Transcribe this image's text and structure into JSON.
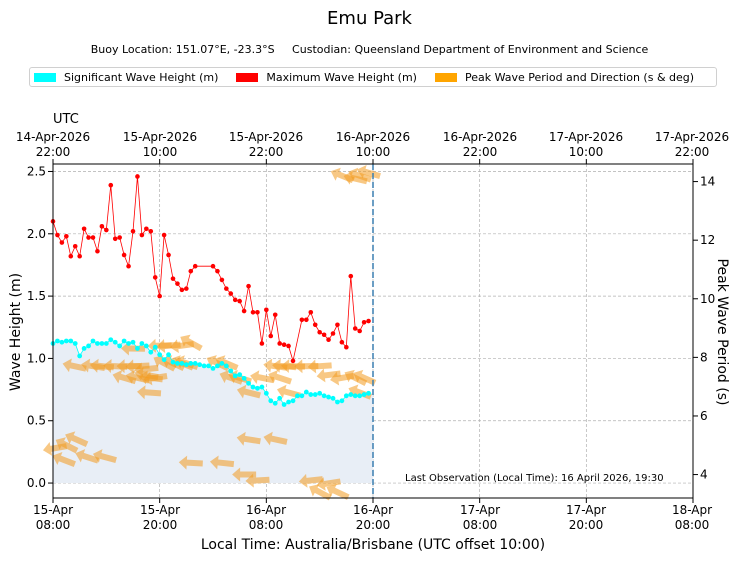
{
  "title": "Emu Park",
  "subtitle": "Buoy Location: 151.07°E, -23.3°S     Custodian: Queensland Department of Environment and Science",
  "legend": [
    {
      "label": "Significant Wave Height (m)",
      "color": "#00ffff"
    },
    {
      "label": "Maximum Wave Height (m)",
      "color": "#ff0000"
    },
    {
      "label": "Peak Wave Period and Direction (s & deg)",
      "color": "#ffa500"
    }
  ],
  "utc_label": "UTC",
  "top_ticks": [
    {
      "date": "14-Apr-2026",
      "time": "22:00"
    },
    {
      "date": "15-Apr-2026",
      "time": "10:00"
    },
    {
      "date": "15-Apr-2026",
      "time": "22:00"
    },
    {
      "date": "16-Apr-2026",
      "time": "10:00"
    },
    {
      "date": "16-Apr-2026",
      "time": "22:00"
    },
    {
      "date": "17-Apr-2026",
      "time": "10:00"
    },
    {
      "date": "17-Apr-2026",
      "time": "22:00"
    }
  ],
  "bottom_ticks": [
    {
      "date": "15-Apr",
      "time": "08:00"
    },
    {
      "date": "15-Apr",
      "time": "20:00"
    },
    {
      "date": "16-Apr",
      "time": "08:00"
    },
    {
      "date": "16-Apr",
      "time": "20:00"
    },
    {
      "date": "17-Apr",
      "time": "08:00"
    },
    {
      "date": "17-Apr",
      "time": "20:00"
    },
    {
      "date": "18-Apr",
      "time": "08:00"
    }
  ],
  "xlabel": "Local Time: Australia/Brisbane (UTC offset 10:00)",
  "ylabel_left": "Wave Height (m)",
  "ylabel_right": "Peak Wave Period (s)",
  "last_observation": "Last Observation (Local Time): 16 April 2026, 19:30",
  "chart_data": {
    "type": "line",
    "title": "Emu Park",
    "x_unit": "hours since 15-Apr 08:00 local",
    "xlim": [
      0,
      72
    ],
    "ylim": [
      -0.12,
      2.56
    ],
    "y2lim": [
      3.2,
      14.6
    ],
    "yticks": [
      0.0,
      0.5,
      1.0,
      1.5,
      2.0,
      2.5
    ],
    "y2ticks": [
      4,
      6,
      8,
      10,
      12,
      14
    ],
    "y_tick_labels": [
      "0.0",
      "0.5",
      "1.0",
      "1.5",
      "2.0",
      "2.5"
    ],
    "y2_tick_labels": [
      "4",
      "6",
      "8",
      "10",
      "12",
      "14"
    ],
    "last_observation_x": 36,
    "series": [
      {
        "name": "Significant Wave Height (m)",
        "color": "#00ffff",
        "x": [
          0,
          0.5,
          1,
          1.5,
          2,
          2.5,
          3,
          3.5,
          4,
          4.5,
          5,
          5.5,
          6,
          6.5,
          7,
          7.5,
          8,
          8.5,
          9,
          9.5,
          10,
          10.5,
          11,
          11.5,
          12,
          12.5,
          13,
          13.5,
          14,
          14.5,
          15,
          15.5,
          16,
          16.5,
          17,
          17.5,
          18,
          18.5,
          19,
          19.5,
          20,
          20.5,
          21,
          21.5,
          22,
          22.5,
          23,
          23.5,
          24,
          24.5,
          25,
          25.5,
          26,
          26.5,
          27,
          27.5,
          28,
          28.5,
          29,
          29.5,
          30,
          30.5,
          31,
          31.5,
          32,
          32.5,
          33,
          33.5,
          34,
          34.5,
          35,
          35.5
        ],
        "values": [
          1.12,
          1.14,
          1.13,
          1.14,
          1.14,
          1.12,
          1.02,
          1.08,
          1.1,
          1.14,
          1.12,
          1.12,
          1.12,
          1.15,
          1.13,
          1.1,
          1.14,
          1.12,
          1.13,
          1.08,
          1.12,
          1.1,
          1.05,
          1.09,
          1.03,
          0.99,
          1.03,
          0.97,
          0.96,
          0.96,
          0.95,
          0.96,
          0.96,
          0.95,
          0.94,
          0.94,
          0.92,
          0.94,
          0.96,
          0.94,
          0.9,
          0.86,
          0.87,
          0.84,
          0.8,
          0.77,
          0.76,
          0.77,
          0.72,
          0.66,
          0.64,
          0.68,
          0.63,
          0.65,
          0.66,
          0.7,
          0.7,
          0.73,
          0.71,
          0.71,
          0.72,
          0.7,
          0.69,
          0.68,
          0.65,
          0.66,
          0.7,
          0.71,
          0.7,
          0.7,
          0.71,
          0.72
        ]
      },
      {
        "name": "Maximum Wave Height (m)",
        "color": "#ff0000",
        "x": [
          0,
          0.5,
          1,
          1.5,
          2,
          2.5,
          3,
          3.5,
          4,
          4.5,
          5,
          5.5,
          6,
          6.5,
          7,
          7.5,
          8,
          8.5,
          9,
          9.5,
          10,
          10.5,
          11,
          11.5,
          12,
          12.5,
          13,
          13.5,
          14,
          14.5,
          15,
          15.5,
          16,
          18,
          18.5,
          19,
          19.5,
          20,
          20.5,
          21,
          21.5,
          22,
          22.5,
          23,
          23.5,
          24,
          24.5,
          25,
          25.5,
          26,
          26.5,
          27,
          28,
          28.5,
          29,
          29.5,
          30,
          30.5,
          31,
          31.5,
          32,
          32.5,
          33,
          33.5,
          34,
          34.5,
          35,
          35.5
        ],
        "values": [
          2.1,
          1.99,
          1.93,
          1.98,
          1.82,
          1.9,
          1.82,
          2.04,
          1.97,
          1.97,
          1.86,
          2.06,
          2.03,
          2.39,
          1.96,
          1.97,
          1.83,
          1.74,
          2.02,
          2.46,
          1.99,
          2.04,
          2.02,
          1.65,
          1.5,
          1.99,
          1.83,
          1.64,
          1.6,
          1.55,
          1.56,
          1.7,
          1.74,
          1.74,
          1.7,
          1.63,
          1.56,
          1.52,
          1.47,
          1.46,
          1.38,
          1.58,
          1.37,
          1.37,
          1.12,
          1.39,
          1.18,
          1.35,
          1.12,
          1.11,
          1.1,
          0.98,
          1.31,
          1.31,
          1.37,
          1.27,
          1.21,
          1.19,
          1.15,
          1.2,
          1.27,
          1.13,
          1.09,
          1.66,
          1.24,
          1.22,
          1.29,
          1.3
        ]
      },
      {
        "name": "Peak Wave Period and Direction (s & deg)",
        "color": "#ffa500",
        "marker": "direction-arrow",
        "period_points": [
          {
            "x": 0.2,
            "period": 4.9
          },
          {
            "x": 1.5,
            "period": 5.0
          },
          {
            "x": 2.6,
            "period": 5.2
          },
          {
            "x": 1.2,
            "period": 4.5
          },
          {
            "x": 3.8,
            "period": 4.6
          },
          {
            "x": 5.8,
            "period": 4.6
          },
          {
            "x": 2.4,
            "period": 7.7
          },
          {
            "x": 4.5,
            "period": 7.7
          },
          {
            "x": 5.5,
            "period": 7.7
          },
          {
            "x": 7.0,
            "period": 7.7
          },
          {
            "x": 8.5,
            "period": 7.7
          },
          {
            "x": 9.5,
            "period": 7.7
          },
          {
            "x": 10.5,
            "period": 7.6
          },
          {
            "x": 11.5,
            "period": 7.3
          },
          {
            "x": 12.5,
            "period": 7.8
          },
          {
            "x": 13.5,
            "period": 7.8
          },
          {
            "x": 14.5,
            "period": 7.8
          },
          {
            "x": 15.0,
            "period": 7.8
          },
          {
            "x": 8.0,
            "period": 7.3
          },
          {
            "x": 9.5,
            "period": 7.3
          },
          {
            "x": 10.5,
            "period": 7.4
          },
          {
            "x": 11.0,
            "period": 7.3
          },
          {
            "x": 10.8,
            "period": 6.8
          },
          {
            "x": 9.0,
            "period": 8.3
          },
          {
            "x": 12.0,
            "period": 8.4
          },
          {
            "x": 13.0,
            "period": 8.4
          },
          {
            "x": 14.5,
            "period": 8.4
          },
          {
            "x": 15.5,
            "period": 8.5
          },
          {
            "x": 18.5,
            "period": 7.8
          },
          {
            "x": 19.5,
            "period": 7.8
          },
          {
            "x": 20.0,
            "period": 7.3
          },
          {
            "x": 21.0,
            "period": 7.3
          },
          {
            "x": 22.0,
            "period": 6.8
          },
          {
            "x": 23.5,
            "period": 7.3
          },
          {
            "x": 25.0,
            "period": 7.7
          },
          {
            "x": 26.0,
            "period": 7.7
          },
          {
            "x": 27.0,
            "period": 7.7
          },
          {
            "x": 28.5,
            "period": 7.7
          },
          {
            "x": 30.0,
            "period": 7.7
          },
          {
            "x": 31.0,
            "period": 7.4
          },
          {
            "x": 32.5,
            "period": 7.3
          },
          {
            "x": 34.0,
            "period": 7.3
          },
          {
            "x": 35.0,
            "period": 7.3
          },
          {
            "x": 34.5,
            "period": 6.8
          },
          {
            "x": 25.5,
            "period": 7.3
          },
          {
            "x": 26.5,
            "period": 6.8
          },
          {
            "x": 25.0,
            "period": 5.2
          },
          {
            "x": 22.0,
            "period": 5.2
          },
          {
            "x": 19.0,
            "period": 4.4
          },
          {
            "x": 15.5,
            "period": 4.4
          },
          {
            "x": 21.5,
            "period": 4.0
          },
          {
            "x": 23.0,
            "period": 3.8
          },
          {
            "x": 29.0,
            "period": 3.8
          },
          {
            "x": 31.0,
            "period": 3.7
          },
          {
            "x": 30.0,
            "period": 3.4
          },
          {
            "x": 32.0,
            "period": 3.4
          },
          {
            "x": 32.5,
            "period": 14.2
          },
          {
            "x": 34.5,
            "period": 14.2
          },
          {
            "x": 35.5,
            "period": 14.3
          },
          {
            "x": 34.0,
            "period": 14.1
          }
        ]
      }
    ]
  }
}
